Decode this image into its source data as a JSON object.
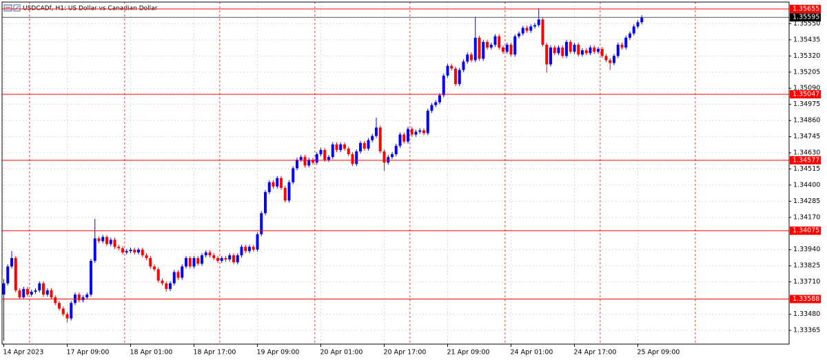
{
  "chart_data": {
    "type": "candlestick",
    "title": "USDCADf, H1:  US Dollar vs Canadian Dollar",
    "categories": [
      "14 Apr 2023",
      null,
      null,
      null,
      null,
      null,
      null,
      null,
      null,
      null,
      null,
      null,
      null,
      null,
      null,
      null,
      "17 Apr 09:00",
      null,
      null,
      null,
      null,
      null,
      null,
      null,
      null,
      null,
      null,
      null,
      null,
      null,
      null,
      null,
      "18 Apr 01:00",
      null,
      null,
      null,
      null,
      null,
      null,
      null,
      null,
      null,
      null,
      null,
      null,
      null,
      null,
      null,
      "18 Apr 17:00",
      null,
      null,
      null,
      null,
      null,
      null,
      null,
      null,
      null,
      null,
      null,
      null,
      null,
      null,
      null,
      "19 Apr 09:00",
      null,
      null,
      null,
      null,
      null,
      null,
      null,
      null,
      null,
      null,
      null,
      null,
      null,
      null,
      null,
      "20 Apr 01:00",
      null,
      null,
      null,
      null,
      null,
      null,
      null,
      null,
      null,
      null,
      null,
      null,
      null,
      null,
      null,
      "20 Apr 17:00",
      null,
      null,
      null,
      null,
      null,
      null,
      null,
      null,
      null,
      null,
      null,
      null,
      null,
      null,
      null,
      "21 Apr 09:00",
      null,
      null,
      null,
      null,
      null,
      null,
      null,
      null,
      null,
      null,
      null,
      null,
      null,
      null,
      null,
      "24 Apr 01:00",
      null,
      null,
      null,
      null,
      null,
      null,
      null,
      null,
      null,
      null,
      null,
      null,
      null,
      null,
      null,
      "24 Apr 17:00",
      null,
      null,
      null,
      null,
      null,
      null,
      null,
      null,
      null,
      null,
      null,
      null,
      null,
      null,
      null,
      "25 Apr 09:00",
      null
    ],
    "open": [
      1.3362,
      1.337,
      1.3382,
      1.3388,
      1.3365,
      1.336,
      1.3366,
      1.3362,
      1.3364,
      1.3365,
      1.337,
      1.3362,
      1.3365,
      1.336,
      1.3356,
      1.3352,
      1.3348,
      1.3345,
      1.3356,
      1.3362,
      1.3358,
      1.336,
      1.3362,
      1.3386,
      1.3402,
      1.34,
      1.3403,
      1.3398,
      1.3401,
      1.3396,
      1.3395,
      1.3392,
      1.3393,
      1.3394,
      1.3392,
      1.3394,
      1.339,
      1.3388,
      1.3382,
      1.338,
      1.3372,
      1.337,
      1.3366,
      1.337,
      1.3378,
      1.3374,
      1.3382,
      1.3388,
      1.3382,
      1.3388,
      1.3384,
      1.339,
      1.3392,
      1.339,
      1.3388,
      1.3386,
      1.3388,
      1.3387,
      1.339,
      1.3385,
      1.339,
      1.3396,
      1.3393,
      1.3396,
      1.3394,
      1.3405,
      1.342,
      1.3435,
      1.3442,
      1.3439,
      1.3445,
      1.3438,
      1.3429,
      1.3442,
      1.3452,
      1.3458,
      1.346,
      1.3454,
      1.3458,
      1.3456,
      1.3462,
      1.3465,
      1.3458,
      1.346,
      1.3469,
      1.3465,
      1.3469,
      1.3466,
      1.3462,
      1.3455,
      1.3464,
      1.347,
      1.3466,
      1.3472,
      1.3475,
      1.3481,
      1.3464,
      1.3456,
      1.346,
      1.3462,
      1.3468,
      1.3476,
      1.3471,
      1.348,
      1.3476,
      1.3478,
      1.3479,
      1.3477,
      1.3493,
      1.3497,
      1.3499,
      1.3504,
      1.3518,
      1.3525,
      1.3523,
      1.3512,
      1.3522,
      1.3528,
      1.3533,
      1.3529,
      1.3545,
      1.353,
      1.3542,
      1.3538,
      1.354,
      1.3546,
      1.3538,
      1.3535,
      1.354,
      1.3533,
      1.3546,
      1.3548,
      1.3552,
      1.355,
      1.3553,
      1.3554,
      1.3558,
      1.354,
      1.3526,
      1.3538,
      1.3534,
      1.3538,
      1.3532,
      1.3542,
      1.3535,
      1.354,
      1.3533,
      1.3536,
      1.3534,
      1.3538,
      1.3535,
      1.3537,
      1.3532,
      1.3529,
      1.3527,
      1.3532,
      1.354,
      1.3538,
      1.3545,
      1.3548,
      1.3553,
      1.3556
    ],
    "high": [
      1.3373,
      1.33835,
      1.3393,
      1.33895,
      1.33665,
      1.33675,
      1.33675,
      1.33655,
      1.33665,
      1.33715,
      1.33715,
      1.33665,
      1.33665,
      1.33615,
      1.33575,
      1.33535,
      1.33495,
      1.33575,
      1.33635,
      1.33635,
      1.33615,
      1.33635,
      1.33875,
      1.3416,
      1.34035,
      1.34045,
      1.34045,
      1.34025,
      1.34025,
      1.33975,
      1.33965,
      1.33945,
      1.33955,
      1.33955,
      1.33955,
      1.33955,
      1.33915,
      1.33895,
      1.33835,
      1.33815,
      1.33735,
      1.33715,
      1.33715,
      1.33795,
      1.33795,
      1.33835,
      1.33895,
      1.33895,
      1.33895,
      1.33895,
      1.33915,
      1.33935,
      1.33935,
      1.33915,
      1.33895,
      1.33895,
      1.33895,
      1.33915,
      1.33915,
      1.33915,
      1.33975,
      1.33975,
      1.33975,
      1.33975,
      1.34065,
      1.34215,
      1.34365,
      1.34435,
      1.34435,
      1.34465,
      1.34465,
      1.34395,
      1.34435,
      1.34535,
      1.34595,
      1.34615,
      1.34615,
      1.34595,
      1.34595,
      1.34635,
      1.34665,
      1.34665,
      1.34615,
      1.34705,
      1.34705,
      1.34705,
      1.34705,
      1.34675,
      1.34635,
      1.34655,
      1.34715,
      1.34715,
      1.34735,
      1.34765,
      1.3488,
      1.34825,
      1.34655,
      1.34615,
      1.34635,
      1.34695,
      1.34775,
      1.34775,
      1.34815,
      1.34815,
      1.34795,
      1.34805,
      1.34805,
      1.34945,
      1.34985,
      1.35005,
      1.35055,
      1.35195,
      1.35265,
      1.35265,
      1.35245,
      1.35235,
      1.35295,
      1.35345,
      1.35345,
      1.356,
      1.35465,
      1.35435,
      1.35435,
      1.35415,
      1.35475,
      1.35475,
      1.35395,
      1.35415,
      1.35415,
      1.35475,
      1.35495,
      1.35535,
      1.35535,
      1.35545,
      1.35555,
      1.3566,
      1.35595,
      1.35415,
      1.35395,
      1.35395,
      1.35395,
      1.35395,
      1.35435,
      1.35435,
      1.35415,
      1.35415,
      1.35375,
      1.35375,
      1.35395,
      1.35395,
      1.35385,
      1.35385,
      1.35335,
      1.35305,
      1.35335,
      1.35415,
      1.35415,
      1.35465,
      1.35495,
      1.35545,
      1.35575,
      1.3561
    ],
    "low": [
      1.3329,
      1.33685,
      1.33805,
      1.33635,
      1.33585,
      1.33585,
      1.33605,
      1.33605,
      1.33625,
      1.33635,
      1.33605,
      1.33605,
      1.33585,
      1.33545,
      1.33505,
      1.33465,
      1.3342,
      1.33435,
      1.33545,
      1.33565,
      1.33565,
      1.33585,
      1.33605,
      1.33845,
      1.33985,
      1.33985,
      1.33965,
      1.33965,
      1.33945,
      1.33935,
      1.33905,
      1.33905,
      1.33915,
      1.33905,
      1.33905,
      1.33885,
      1.33865,
      1.33805,
      1.33785,
      1.33705,
      1.33685,
      1.3364,
      1.33645,
      1.33685,
      1.33725,
      1.33725,
      1.33805,
      1.33805,
      1.33805,
      1.33825,
      1.33825,
      1.33885,
      1.33885,
      1.33865,
      1.33845,
      1.33845,
      1.33855,
      1.33855,
      1.33835,
      1.33835,
      1.33885,
      1.33915,
      1.33915,
      1.33925,
      1.33925,
      1.34035,
      1.34185,
      1.34335,
      1.34375,
      1.34375,
      1.34365,
      1.34275,
      1.34275,
      1.34405,
      1.34505,
      1.34565,
      1.34525,
      1.34525,
      1.34545,
      1.34545,
      1.34605,
      1.34565,
      1.34565,
      1.34585,
      1.34635,
      1.34635,
      1.34645,
      1.34605,
      1.34535,
      1.34535,
      1.34625,
      1.34645,
      1.34645,
      1.34705,
      1.34735,
      1.34625,
      1.345,
      1.34545,
      1.34585,
      1.34605,
      1.34665,
      1.34695,
      1.34695,
      1.34745,
      1.34745,
      1.34765,
      1.34755,
      1.34755,
      1.34915,
      1.34955,
      1.34975,
      1.35025,
      1.35165,
      1.35215,
      1.35105,
      1.35105,
      1.35205,
      1.35265,
      1.35275,
      1.35275,
      1.35285,
      1.35285,
      1.35365,
      1.35365,
      1.35385,
      1.35365,
      1.35335,
      1.35335,
      1.35315,
      1.35315,
      1.35445,
      1.35465,
      1.35485,
      1.35485,
      1.35515,
      1.35525,
      1.35385,
      1.352,
      1.35245,
      1.35325,
      1.35325,
      1.35305,
      1.35305,
      1.35335,
      1.35335,
      1.35315,
      1.35315,
      1.35325,
      1.35325,
      1.35335,
      1.35335,
      1.35305,
      1.35275,
      1.3522,
      1.35255,
      1.35305,
      1.35365,
      1.35365,
      1.35435,
      1.35465,
      1.35515,
      1.35545
    ],
    "close": [
      1.337,
      1.3382,
      1.3388,
      1.3365,
      1.336,
      1.3366,
      1.3362,
      1.3364,
      1.3365,
      1.337,
      1.3362,
      1.3365,
      1.336,
      1.3356,
      1.3352,
      1.3348,
      1.3345,
      1.3356,
      1.3362,
      1.3358,
      1.336,
      1.3362,
      1.3386,
      1.3402,
      1.34,
      1.3403,
      1.3398,
      1.3401,
      1.3396,
      1.3395,
      1.3392,
      1.3393,
      1.3394,
      1.3392,
      1.3394,
      1.339,
      1.3388,
      1.3382,
      1.338,
      1.3372,
      1.337,
      1.3366,
      1.337,
      1.3378,
      1.3374,
      1.3382,
      1.3388,
      1.3382,
      1.3388,
      1.3384,
      1.339,
      1.3392,
      1.339,
      1.3388,
      1.3386,
      1.3388,
      1.3387,
      1.339,
      1.3385,
      1.339,
      1.3396,
      1.3393,
      1.3396,
      1.3394,
      1.3405,
      1.342,
      1.3435,
      1.3442,
      1.3439,
      1.3445,
      1.3438,
      1.3429,
      1.3442,
      1.3452,
      1.3458,
      1.346,
      1.3454,
      1.3458,
      1.3456,
      1.3462,
      1.3465,
      1.3458,
      1.346,
      1.3469,
      1.3465,
      1.3469,
      1.3466,
      1.3462,
      1.3455,
      1.3464,
      1.347,
      1.3466,
      1.3472,
      1.3475,
      1.3481,
      1.3464,
      1.3456,
      1.346,
      1.3462,
      1.3468,
      1.3476,
      1.3471,
      1.348,
      1.3476,
      1.3478,
      1.3479,
      1.3477,
      1.3493,
      1.3497,
      1.3499,
      1.3504,
      1.3518,
      1.3525,
      1.3523,
      1.3512,
      1.3522,
      1.3528,
      1.3533,
      1.3529,
      1.3545,
      1.353,
      1.3542,
      1.3538,
      1.354,
      1.3546,
      1.3538,
      1.3535,
      1.354,
      1.3533,
      1.3546,
      1.3548,
      1.3552,
      1.355,
      1.3553,
      1.3554,
      1.3558,
      1.354,
      1.3526,
      1.3538,
      1.3534,
      1.3538,
      1.3532,
      1.3542,
      1.3535,
      1.354,
      1.3533,
      1.3536,
      1.3534,
      1.3538,
      1.3535,
      1.3537,
      1.3532,
      1.3529,
      1.3527,
      1.3532,
      1.354,
      1.3538,
      1.3545,
      1.3548,
      1.3553,
      1.3556,
      1.35595
    ],
    "up_color": "#0000ff",
    "down_color": "#ff0000",
    "ylim": [
      1.33267,
      1.35704
    ],
    "yticks": [
      {
        "value": 1.3555,
        "label": "1.35550"
      },
      1.35435,
      {
        "value": 1.3532,
        "label": "1.35320"
      },
      1.35205,
      {
        "value": 1.3509,
        "label": "1.35090"
      },
      1.34975,
      {
        "value": 1.3486,
        "label": "1.34860"
      },
      1.34745,
      {
        "value": 1.3463,
        "label": "1.34630"
      },
      1.34515,
      {
        "value": 1.344,
        "label": "1.34400"
      },
      1.34285,
      {
        "value": 1.3417,
        "label": "1.34170"
      },
      {
        "value": 1.3394,
        "label": "1.33940"
      },
      1.33825,
      {
        "value": 1.3371,
        "label": "1.33710"
      },
      {
        "value": 1.3348,
        "label": "1.33480"
      },
      1.33365
    ],
    "grid": true,
    "levels": [
      1.35655,
      1.35047,
      1.34577,
      1.34075,
      1.33588
    ],
    "level_color": "#ff0000",
    "current_price": 1.35595
  }
}
